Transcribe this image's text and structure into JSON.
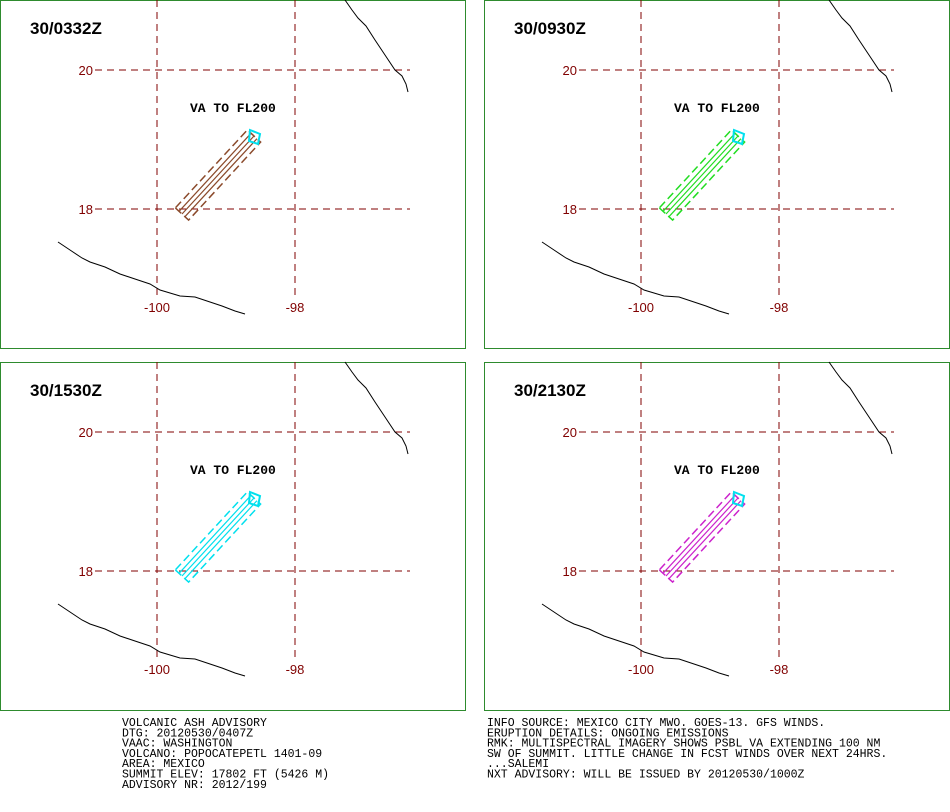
{
  "panels": [
    {
      "time": "30/0332Z",
      "label": "VA TO FL200",
      "color": "#8b4a2b"
    },
    {
      "time": "30/0930Z",
      "label": "VA TO FL200",
      "color": "#22dd22"
    },
    {
      "time": "30/1530Z",
      "label": "VA TO FL200",
      "color": "#00e0ee"
    },
    {
      "time": "30/2130Z",
      "label": "VA TO FL200",
      "color": "#cc22cc"
    }
  ],
  "grid": {
    "lat": [
      "20",
      "18"
    ],
    "lon": [
      "-100",
      "-98"
    ]
  },
  "advisory": {
    "left": [
      "VOLCANIC ASH ADVISORY",
      "DTG: 20120530/0407Z",
      "VAAC: WASHINGTON",
      "VOLCANO: POPOCATEPETL 1401-09",
      "AREA: MEXICO",
      "SUMMIT ELEV: 17802 FT (5426 M)",
      "ADVISORY NR: 2012/199"
    ],
    "right": [
      "INFO SOURCE: MEXICO CITY MWO. GOES-13. GFS WINDS.",
      "ERUPTION DETAILS: ONGOING EMISSIONS",
      "RMK: MULTISPECTRAL IMAGERY SHOWS PSBL VA EXTENDING 100 NM",
      "SW OF SUMMIT. LITTLE CHANGE IN FCST WINDS OVER NEXT 24HRS.",
      "...SALEMI",
      "NXT ADVISORY: WILL BE ISSUED BY 20120530/1000Z"
    ]
  }
}
